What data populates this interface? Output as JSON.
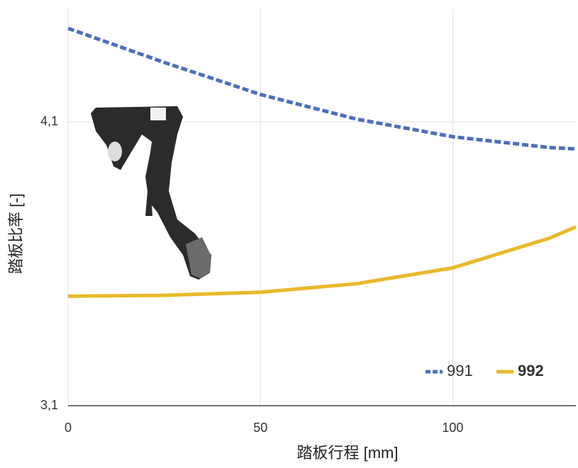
{
  "chart_data": {
    "type": "line",
    "x_label": "踏板行程 [mm]",
    "y_label": "踏板比率 [-]",
    "x": [
      0,
      25,
      50,
      75,
      100,
      125,
      132
    ],
    "xlim": [
      0,
      132
    ],
    "xticks": [
      0,
      50,
      100
    ],
    "ylim": [
      3.1,
      4.5
    ],
    "yticks": [
      {
        "value": 3.1,
        "label": "3,1"
      },
      {
        "value": 4.1,
        "label": "4,1"
      }
    ],
    "grid": true,
    "legend": "lower right",
    "series": [
      {
        "name": "991",
        "color": "#4a6fc0",
        "dashed": true,
        "values": [
          4.43,
          4.31,
          4.197,
          4.11,
          4.048,
          4.01,
          4.005
        ]
      },
      {
        "name": "992",
        "color": "#e8b92a",
        "dashed": false,
        "bold": true,
        "values": [
          3.486,
          3.489,
          3.5,
          3.53,
          3.586,
          3.69,
          3.73
        ]
      }
    ]
  }
}
